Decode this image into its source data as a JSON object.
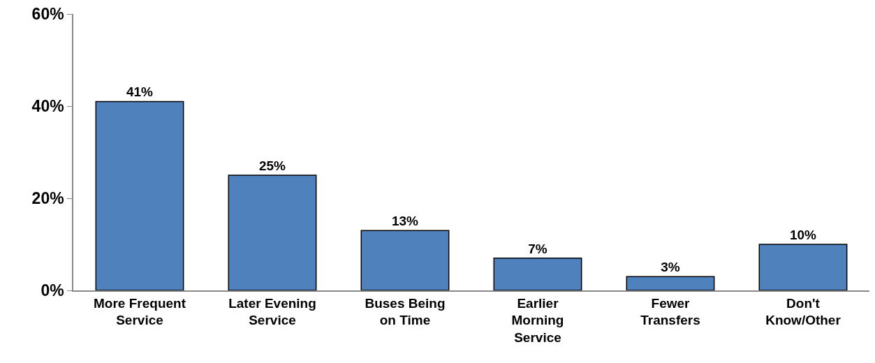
{
  "chart_data": {
    "type": "bar",
    "categories": [
      "More Frequent Service",
      "Later Evening Service",
      "Buses Being on Time",
      "Earlier Morning Service",
      "Fewer Transfers",
      "Don't Know/Other"
    ],
    "values": [
      41,
      25,
      13,
      7,
      3,
      10
    ],
    "value_labels": [
      "41%",
      "25%",
      "13%",
      "7%",
      "3%",
      "10%"
    ],
    "color": "#4f81bd",
    "ylim": [
      0,
      60
    ],
    "yticks": [
      {
        "value": 0,
        "label": "0%"
      },
      {
        "value": 20,
        "label": "20%"
      },
      {
        "value": 40,
        "label": "40%"
      },
      {
        "value": 60,
        "label": "60%"
      }
    ],
    "tick_labels": "xy"
  }
}
